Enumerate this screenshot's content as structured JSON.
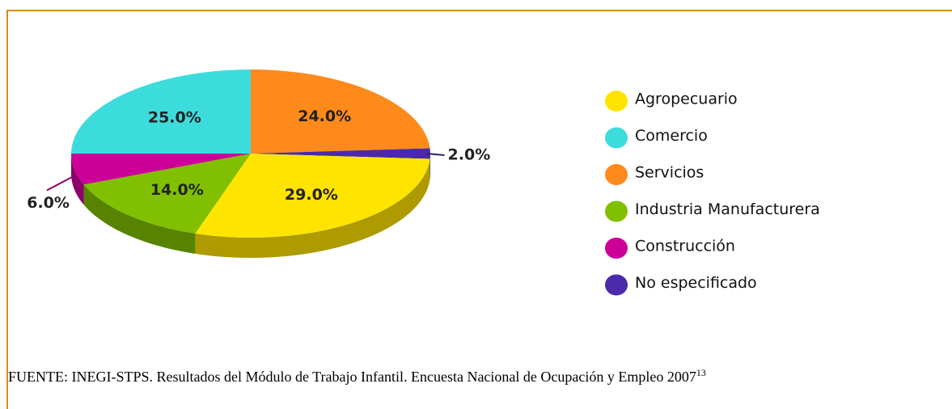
{
  "chart_data": {
    "type": "pie3d",
    "categories": [
      "Agropecuario",
      "Comercio",
      "Servicios",
      "Industria Manufacturera",
      "Construcción",
      "No especificado"
    ],
    "values": [
      29,
      25,
      24,
      14,
      6,
      2
    ],
    "value_labels": [
      "29.0%",
      "25.0%",
      "24.0%",
      "14.0%",
      "6.0%",
      "2.0%"
    ],
    "colors": [
      "#ffe400",
      "#3ddcdc",
      "#ff8a1c",
      "#80c000",
      "#cc0099",
      "#4a2aa8"
    ]
  },
  "source": {
    "text": "FUENTE: INEGI-STPS. Resultados del Módulo de Trabajo Infantil. Encuesta Nacional de Ocupación y Empleo 2007",
    "note": "13"
  }
}
